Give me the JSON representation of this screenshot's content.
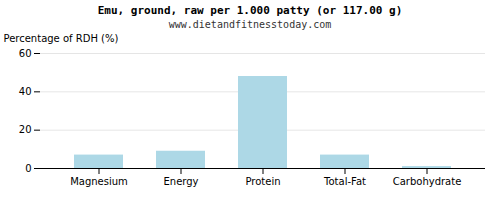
{
  "chart_data": {
    "type": "bar",
    "title": "Emu, ground, raw per 1.000 patty (or 117.00 g)",
    "subtitle": "www.dietandfitnesstoday.com",
    "categories": [
      "Magnesium",
      "Energy",
      "Protein",
      "Total-Fat",
      "Carbohydrate"
    ],
    "values": [
      7,
      9,
      48,
      7,
      1
    ],
    "color": "#add8e6",
    "ylabel": "Percentage of RDH (%)",
    "ylim": [
      0,
      60
    ],
    "yticks": [
      0,
      20,
      40,
      60
    ],
    "grid": true
  }
}
